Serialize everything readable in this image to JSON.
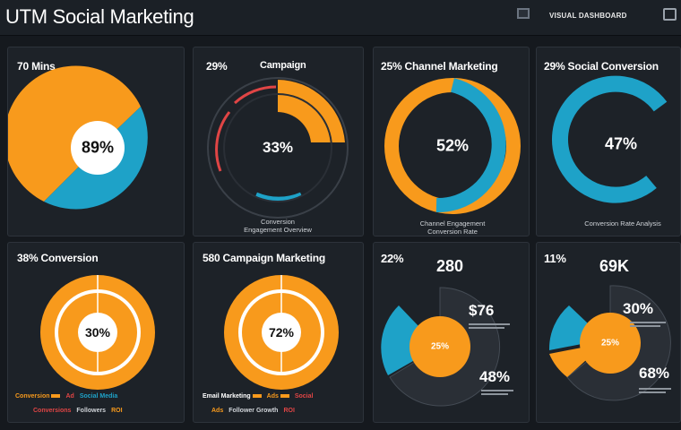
{
  "app": {
    "title": "UTM Social Marketing",
    "top_link": "VISUAL DASHBOARD"
  },
  "panels": [
    {
      "title": "70 Mins",
      "center_value": "89%",
      "chart": {
        "type": "pie",
        "segments": [
          {
            "value": 55,
            "color": "#f89a1c"
          },
          {
            "value": 45,
            "color": "#1ea2c8"
          }
        ]
      }
    },
    {
      "title": "29%",
      "title2": "Campaign",
      "center_value": "33%",
      "caption": "Conversion",
      "caption2": "Engagement Overview",
      "chart": {
        "type": "ring",
        "segments": [
          {
            "value": 22,
            "color": "#f89a1c"
          },
          {
            "value": 14,
            "color": "#2a2f36"
          },
          {
            "value": 10,
            "color": "#1ea2c8"
          },
          {
            "value": 20,
            "color": "#2a2f36"
          },
          {
            "value": 18,
            "color": "#e04545"
          },
          {
            "value": 16,
            "color": "#2a2f36"
          }
        ]
      }
    },
    {
      "title": "25% Channel Marketing",
      "center_value": "52%",
      "caption": "Channel Engagement",
      "caption2": "Conversion Rate",
      "chart": {
        "type": "ring",
        "segments": [
          {
            "value": 52,
            "color": "#1ea2c8"
          },
          {
            "value": 48,
            "color": "#f89a1c"
          }
        ]
      }
    },
    {
      "title": "29% Social Conversion",
      "center_value": "47%",
      "caption": "Conversion Rate Analysis",
      "chart": {
        "type": "ring",
        "segments": [
          {
            "value": 82,
            "color": "#1ea2c8"
          },
          {
            "value": 18,
            "color": "#1d2228"
          }
        ]
      }
    },
    {
      "title": "38% Conversion",
      "center_value": "30%",
      "legend": [
        "Conversion",
        "Ad",
        "Social Media"
      ],
      "legend2": [
        "Conversions",
        "Followers",
        "ROI"
      ],
      "chart": {
        "type": "donut",
        "segments": [
          {
            "value": 100,
            "color": "#f89a1c"
          }
        ]
      }
    },
    {
      "title": "580 Campaign Marketing",
      "center_value": "72%",
      "legend": [
        "Email Marketing",
        "Ads",
        "Social"
      ],
      "legend2": [
        "Ads",
        "Follower Growth",
        "ROI"
      ],
      "chart": {
        "type": "donut",
        "segments": [
          {
            "value": 100,
            "color": "#f89a1c"
          }
        ]
      }
    },
    {
      "title": "22%",
      "big_value": "280",
      "side_value": "$76",
      "side_value2": "48%",
      "center_value": "25%",
      "chart": {
        "type": "pie-exploded",
        "segments": [
          {
            "value": 70,
            "color": "#2a2f36"
          },
          {
            "value": 30,
            "color": "#1ea2c8"
          }
        ]
      }
    },
    {
      "title": "11%",
      "big_value": "69K",
      "side_value": "30%",
      "side_value2": "68%",
      "center_value": "25%",
      "chart": {
        "type": "pie-exploded",
        "segments": [
          {
            "value": 62,
            "color": "#2a2f36"
          },
          {
            "value": 22,
            "color": "#1ea2c8"
          },
          {
            "value": 16,
            "color": "#f89a1c"
          }
        ]
      }
    }
  ]
}
